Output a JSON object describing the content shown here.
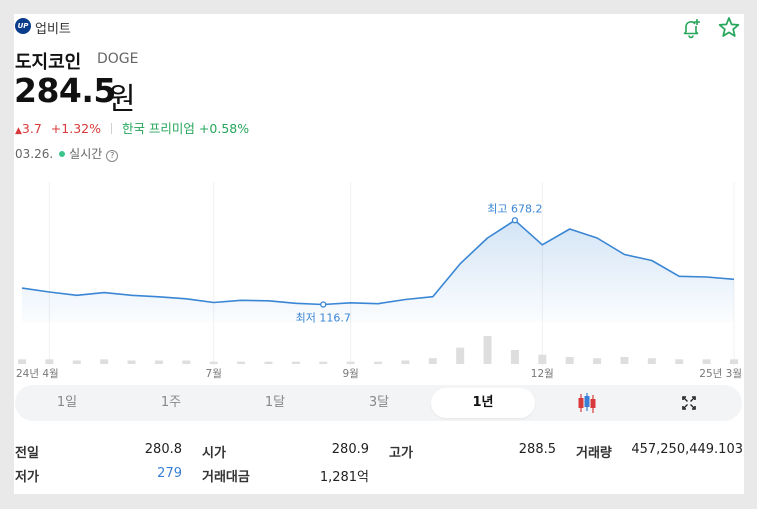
{
  "source": {
    "logo_text": "UP",
    "name": "업비트"
  },
  "coin": {
    "name": "도지코인",
    "ticker": "DOGE"
  },
  "price": {
    "value": "284.5",
    "unit": "원"
  },
  "change": {
    "arrow": "▲",
    "amount": "3.7",
    "percent": "+1.32%",
    "premium_label": "한국 프리미엄",
    "premium_value": "+0.58%"
  },
  "status": {
    "date": "03.26.",
    "realtime_label": "실시간",
    "help": "?"
  },
  "chart_data": {
    "type": "line",
    "x": [
      "2024-03-26",
      "2024-04-09",
      "2024-04-23",
      "2024-05-07",
      "2024-05-21",
      "2024-06-04",
      "2024-06-18",
      "2024-07-02",
      "2024-07-16",
      "2024-07-30",
      "2024-08-13",
      "2024-08-27",
      "2024-09-10",
      "2024-09-24",
      "2024-10-08",
      "2024-10-22",
      "2024-11-05",
      "2024-11-19",
      "2024-12-03",
      "2024-12-17",
      "2024-12-31",
      "2025-01-14",
      "2025-01-28",
      "2025-02-11",
      "2025-02-25",
      "2025-03-11",
      "2025-03-26"
    ],
    "series": [
      {
        "values": [
          226,
          200,
          178,
          196,
          178,
          168,
          155,
          130,
          145,
          141,
          125,
          116.7,
          128,
          122,
          150,
          169,
          389,
          560,
          678.2,
          515,
          620,
          560,
          450,
          410,
          305,
          300,
          284.5
        ],
        "color": "#3a86d4"
      }
    ],
    "volume": [
      2,
      2,
      1.5,
      2,
      1.5,
      1.5,
      1.5,
      1,
      1,
      1,
      1,
      1,
      1,
      1,
      1.5,
      2.5,
      7,
      12,
      6,
      4,
      3,
      2.5,
      3,
      2.5,
      2,
      2,
      2
    ],
    "x_tick_labels": [
      "24년 4월",
      "7월",
      "9월",
      "12월",
      "25년 3월"
    ],
    "annotations": {
      "high_label": "최고 678.2",
      "low_label": "최저 116.7"
    },
    "ylim": [
      0,
      800
    ],
    "grid": true
  },
  "tabs": [
    {
      "label": "1일",
      "active": false
    },
    {
      "label": "1주",
      "active": false
    },
    {
      "label": "1달",
      "active": false
    },
    {
      "label": "3달",
      "active": false
    },
    {
      "label": "1년",
      "active": true
    }
  ],
  "tab_icons": {
    "candle": "candlestick-chart-icon",
    "expand": "expand-icon"
  },
  "stats": {
    "prev_close": {
      "label": "전일",
      "value": "280.8"
    },
    "open": {
      "label": "시가",
      "value": "280.9"
    },
    "high": {
      "label": "고가",
      "value": "288.5"
    },
    "volume": {
      "label": "거래량",
      "value": "457,250,449.103"
    },
    "low": {
      "label": "저가",
      "value": "279"
    },
    "trade_amount": {
      "label": "거래대금",
      "value": "1,281억"
    }
  },
  "colors": {
    "up": "#d8393a",
    "down": "#3a7fd5",
    "premium": "#26a65b",
    "line": "#3a86d4",
    "bell": "#26a65b"
  }
}
